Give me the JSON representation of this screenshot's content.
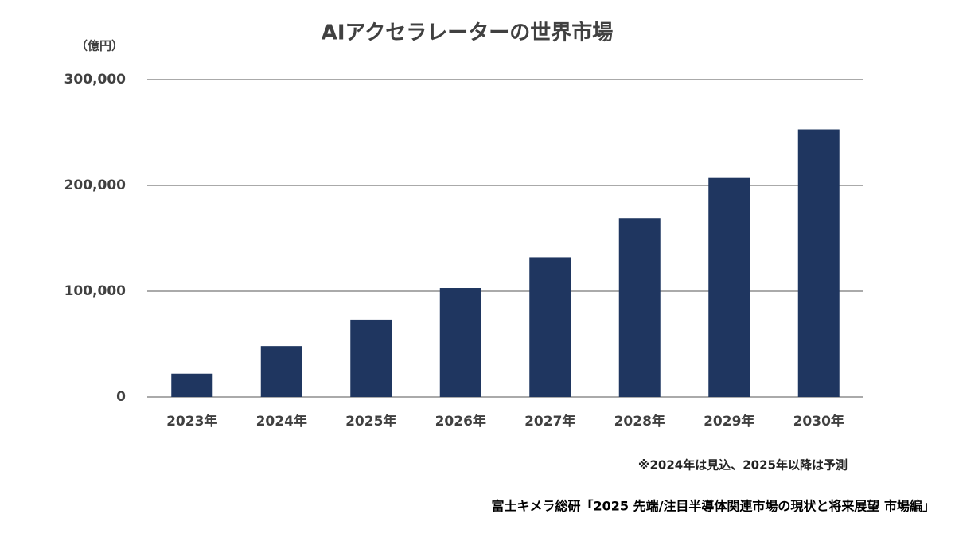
{
  "chart_data": {
    "type": "bar",
    "title": "AIアクセラレーターの世界市場",
    "y_label": "（億円）",
    "categories": [
      "2023年",
      "2024年",
      "2025年",
      "2026年",
      "2027年",
      "2028年",
      "2029年",
      "2030年"
    ],
    "values": [
      22000,
      48000,
      73000,
      103000,
      132000,
      169000,
      207000,
      253000
    ],
    "color": "#1f3660",
    "ylim": [
      0,
      300000
    ],
    "yticks": [
      0,
      {
        "value": 100000,
        "label": "100,000"
      },
      {
        "value": 200000,
        "label": "200,000"
      },
      {
        "value": 300000,
        "label": "300,000"
      }
    ],
    "grid": true,
    "note": "※2024年は見込、2025年以降は予測",
    "source": "富士キメラ総研「2025 先端/注目半導体関連市場の現状と将来展望 市場編」"
  }
}
